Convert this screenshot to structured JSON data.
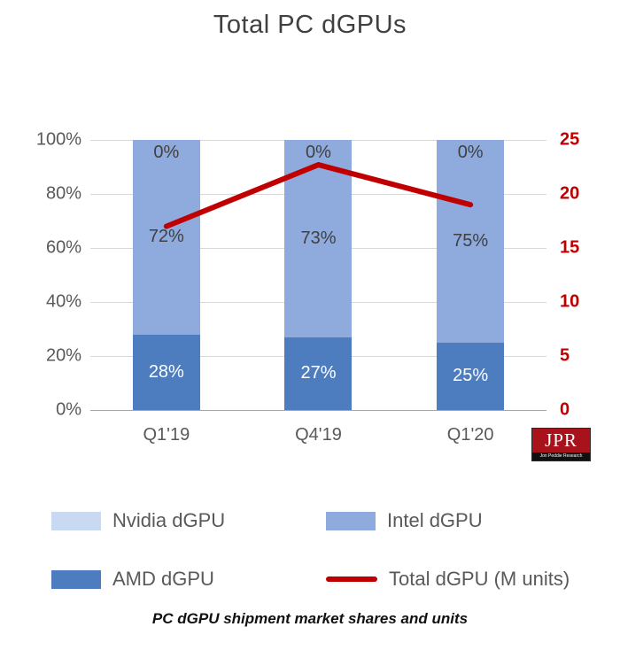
{
  "title": "Total PC dGPUs",
  "caption": "PC dGPU shipment market shares and units",
  "logo": {
    "text": "JPR",
    "subtext": "Jon Peddie Research"
  },
  "chart_data": {
    "type": "bar",
    "stacked": true,
    "title": "Total PC dGPUs",
    "categories": [
      "Q1'19",
      "Q4'19",
      "Q1'20"
    ],
    "series": [
      {
        "name": "AMD dGPU",
        "values": [
          28,
          27,
          25
        ],
        "color": "#4d7dbf",
        "label_color": "#ffffff"
      },
      {
        "name": "Intel dGPU",
        "values": [
          72,
          73,
          75
        ],
        "color": "#8faadc",
        "label_color": "#404040"
      },
      {
        "name": "Nvidia dGPU",
        "values": [
          0,
          0,
          0
        ],
        "color": "#c9d9f1",
        "label_color": "#404040"
      }
    ],
    "line_series": {
      "name": "Total dGPU (M units)",
      "values": [
        17,
        22.7,
        19
      ],
      "color": "#c00000"
    },
    "left_axis": {
      "ticks": [
        "100%",
        "80%",
        "60%",
        "40%",
        "20%",
        "0%"
      ],
      "range": [
        0,
        100
      ]
    },
    "right_axis": {
      "ticks": [
        "25",
        "20",
        "15",
        "10",
        "5",
        "0"
      ],
      "range": [
        0,
        25
      ],
      "color": "#c00000"
    },
    "grid": true,
    "legend_position": "bottom"
  },
  "legend": [
    {
      "label": "Nvidia dGPU",
      "swatch": "#c9d9f1",
      "type": "box"
    },
    {
      "label": "Intel dGPU",
      "swatch": "#8faadc",
      "type": "box"
    },
    {
      "label": "AMD dGPU",
      "swatch": "#4d7dbf",
      "type": "box"
    },
    {
      "label": "Total dGPU (M units)",
      "swatch": "#c00000",
      "type": "line"
    }
  ]
}
